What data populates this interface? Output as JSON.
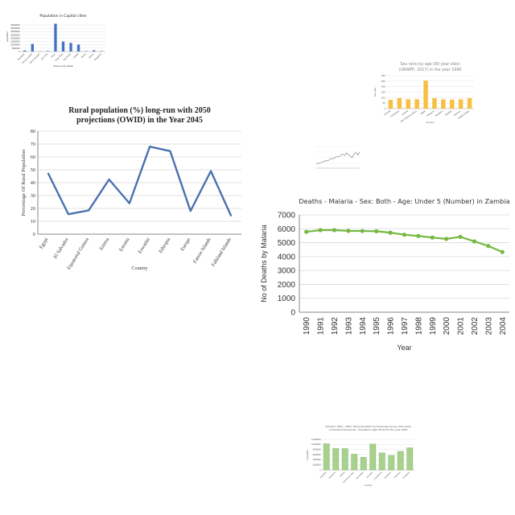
{
  "charts": [
    {
      "id": "capital",
      "type": "bar",
      "title": "Population in Capital cities",
      "xlabel": "Name of city capital",
      "ylabel": "population",
      "ylim": [
        0,
        45000000
      ],
      "yticks": [
        0,
        5000000,
        10000000,
        15000000,
        20000000,
        25000000,
        30000000,
        35000000,
        40000000
      ],
      "ytick_labels": [
        "0",
        "5000000",
        "10000000",
        "15000000",
        "20000000",
        "25000000",
        "30000000",
        "35000000",
        "40000000"
      ],
      "categories": [
        "Reykjavik",
        "Rio de Janeiro",
        "Saint George's",
        "San Jose",
        "Tokyo",
        "Cape Town",
        "Sao Paulo",
        "Ciudad",
        "Dhaka",
        "Sana'a",
        "Singapore"
      ],
      "values": [
        1500000,
        11500000,
        300000,
        800000,
        42000000,
        15000000,
        13000000,
        10500000,
        500000,
        1800000,
        600000
      ],
      "color": "#4472c4"
    },
    {
      "id": "sexratio",
      "type": "bar",
      "title": "Sex ratio by age (60 year olds)",
      "subtitle": "(UNWPP, 2017) in the year 1990",
      "xlabel": "Country",
      "ylabel": "Sex ratio",
      "ylim": [
        0,
        300
      ],
      "yticks": [
        0,
        50,
        100,
        150,
        200,
        250,
        300
      ],
      "ytick_labels": [
        "0",
        "50",
        "100",
        "150",
        "200",
        "250",
        "300"
      ],
      "categories": [
        "Finland",
        "Cameroon",
        "Iceland",
        "Sub-Saharan Africa",
        "Qatar",
        "Malaysia",
        "Mauritius",
        "Sweden",
        "Monaco",
        "United States"
      ],
      "values": [
        80,
        95,
        85,
        85,
        255,
        95,
        85,
        82,
        85,
        95
      ],
      "color": "#f6c142"
    },
    {
      "id": "small_line",
      "type": "line",
      "title": "",
      "xlabel": "",
      "ylabel": "",
      "ylim": [
        0,
        100
      ],
      "x": [
        1,
        2,
        3,
        4,
        5,
        6,
        7,
        8,
        9,
        10,
        11,
        12,
        13,
        14,
        15,
        16,
        17,
        18,
        19,
        20,
        21,
        22,
        23,
        24
      ],
      "values": [
        20,
        22,
        25,
        27,
        31,
        35,
        33,
        40,
        45,
        43,
        50,
        55,
        52,
        60,
        65,
        58,
        70,
        62,
        55,
        48,
        66,
        72,
        60,
        75
      ],
      "color": "#777777"
    },
    {
      "id": "rural",
      "type": "line",
      "title": "Rural population (%) long-run with 2050 projections (OWID) in the Year 2045",
      "title_lines": [
        "Rural population (%) long-run with 2050",
        "projections (OWID) in the Year 2045"
      ],
      "xlabel": "Country",
      "ylabel": "Percentage Of Rural Population",
      "ylim": [
        0,
        80
      ],
      "yticks": [
        0,
        10,
        20,
        30,
        40,
        50,
        60,
        70,
        80
      ],
      "ytick_labels": [
        "0",
        "10",
        "20",
        "30",
        "40",
        "50",
        "60",
        "70",
        "80"
      ],
      "categories": [
        "Egypt",
        "El Salvador",
        "Equatorial Guinea",
        "Eritrea",
        "Estonia",
        "Eswatini",
        "Ethiopia",
        "Europe",
        "Faeroe Islands",
        "Falkland Islands"
      ],
      "values": [
        47.5,
        15.5,
        18.5,
        42.5,
        24,
        68,
        64.5,
        18,
        49,
        14
      ],
      "color": "#4a72b0"
    },
    {
      "id": "malaria",
      "type": "line",
      "title": "Deaths - Malaria - Sex: Both - Age: Under 5 (Number) in Zambia",
      "xlabel": "Year",
      "ylabel": "No of Deaths by Malaria",
      "ylim": [
        0,
        7000
      ],
      "yticks": [
        0,
        1000,
        2000,
        3000,
        4000,
        5000,
        6000,
        7000
      ],
      "ytick_labels": [
        "0",
        "1000",
        "2000",
        "3000",
        "4000",
        "5000",
        "6000",
        "7000"
      ],
      "categories": [
        "1990",
        "1991",
        "1992",
        "1993",
        "1994",
        "1995",
        "1996",
        "1997",
        "1998",
        "1999",
        "2000",
        "2001",
        "2002",
        "2003",
        "2004"
      ],
      "values": [
        5780,
        5900,
        5900,
        5850,
        5840,
        5820,
        5720,
        5570,
        5480,
        5370,
        5270,
        5420,
        5090,
        4760,
        4330
      ],
      "color": "#77b843"
    },
    {
      "id": "salvador",
      "type": "bar",
      "title": "Salvador 1950 - 2020. Total population by broad age group, both sexes combined (thousands) - Population aged 15-64 for the year 2020",
      "title_lines": [
        "Salvador 1950 - 2020. Total population by broad age group, both sexes",
        "combined (thousands) - Population aged 15-64 for the year 2020"
      ],
      "xlabel": "country",
      "ylabel": "Population",
      "ylim": [
        0,
        12000000
      ],
      "yticks": [
        0,
        2000000,
        4000000,
        6000000,
        8000000,
        10000000,
        12000000
      ],
      "ytick_labels": [
        "0",
        "2000000",
        "4000000",
        "6000000",
        "8000000",
        "10000000",
        "12000000"
      ],
      "categories": [
        "Salvador",
        "Bahamas",
        "Bolivia",
        "Dominican Rep.",
        "Nicaragua",
        "Ecuador",
        "Guatemala",
        "Honduras",
        "Panama",
        "Paraguay"
      ],
      "values": [
        10300000,
        8500000,
        8400000,
        6200000,
        5000000,
        10200000,
        6700000,
        5700000,
        7300000,
        8700000
      ],
      "color": "#a9d18e"
    }
  ]
}
